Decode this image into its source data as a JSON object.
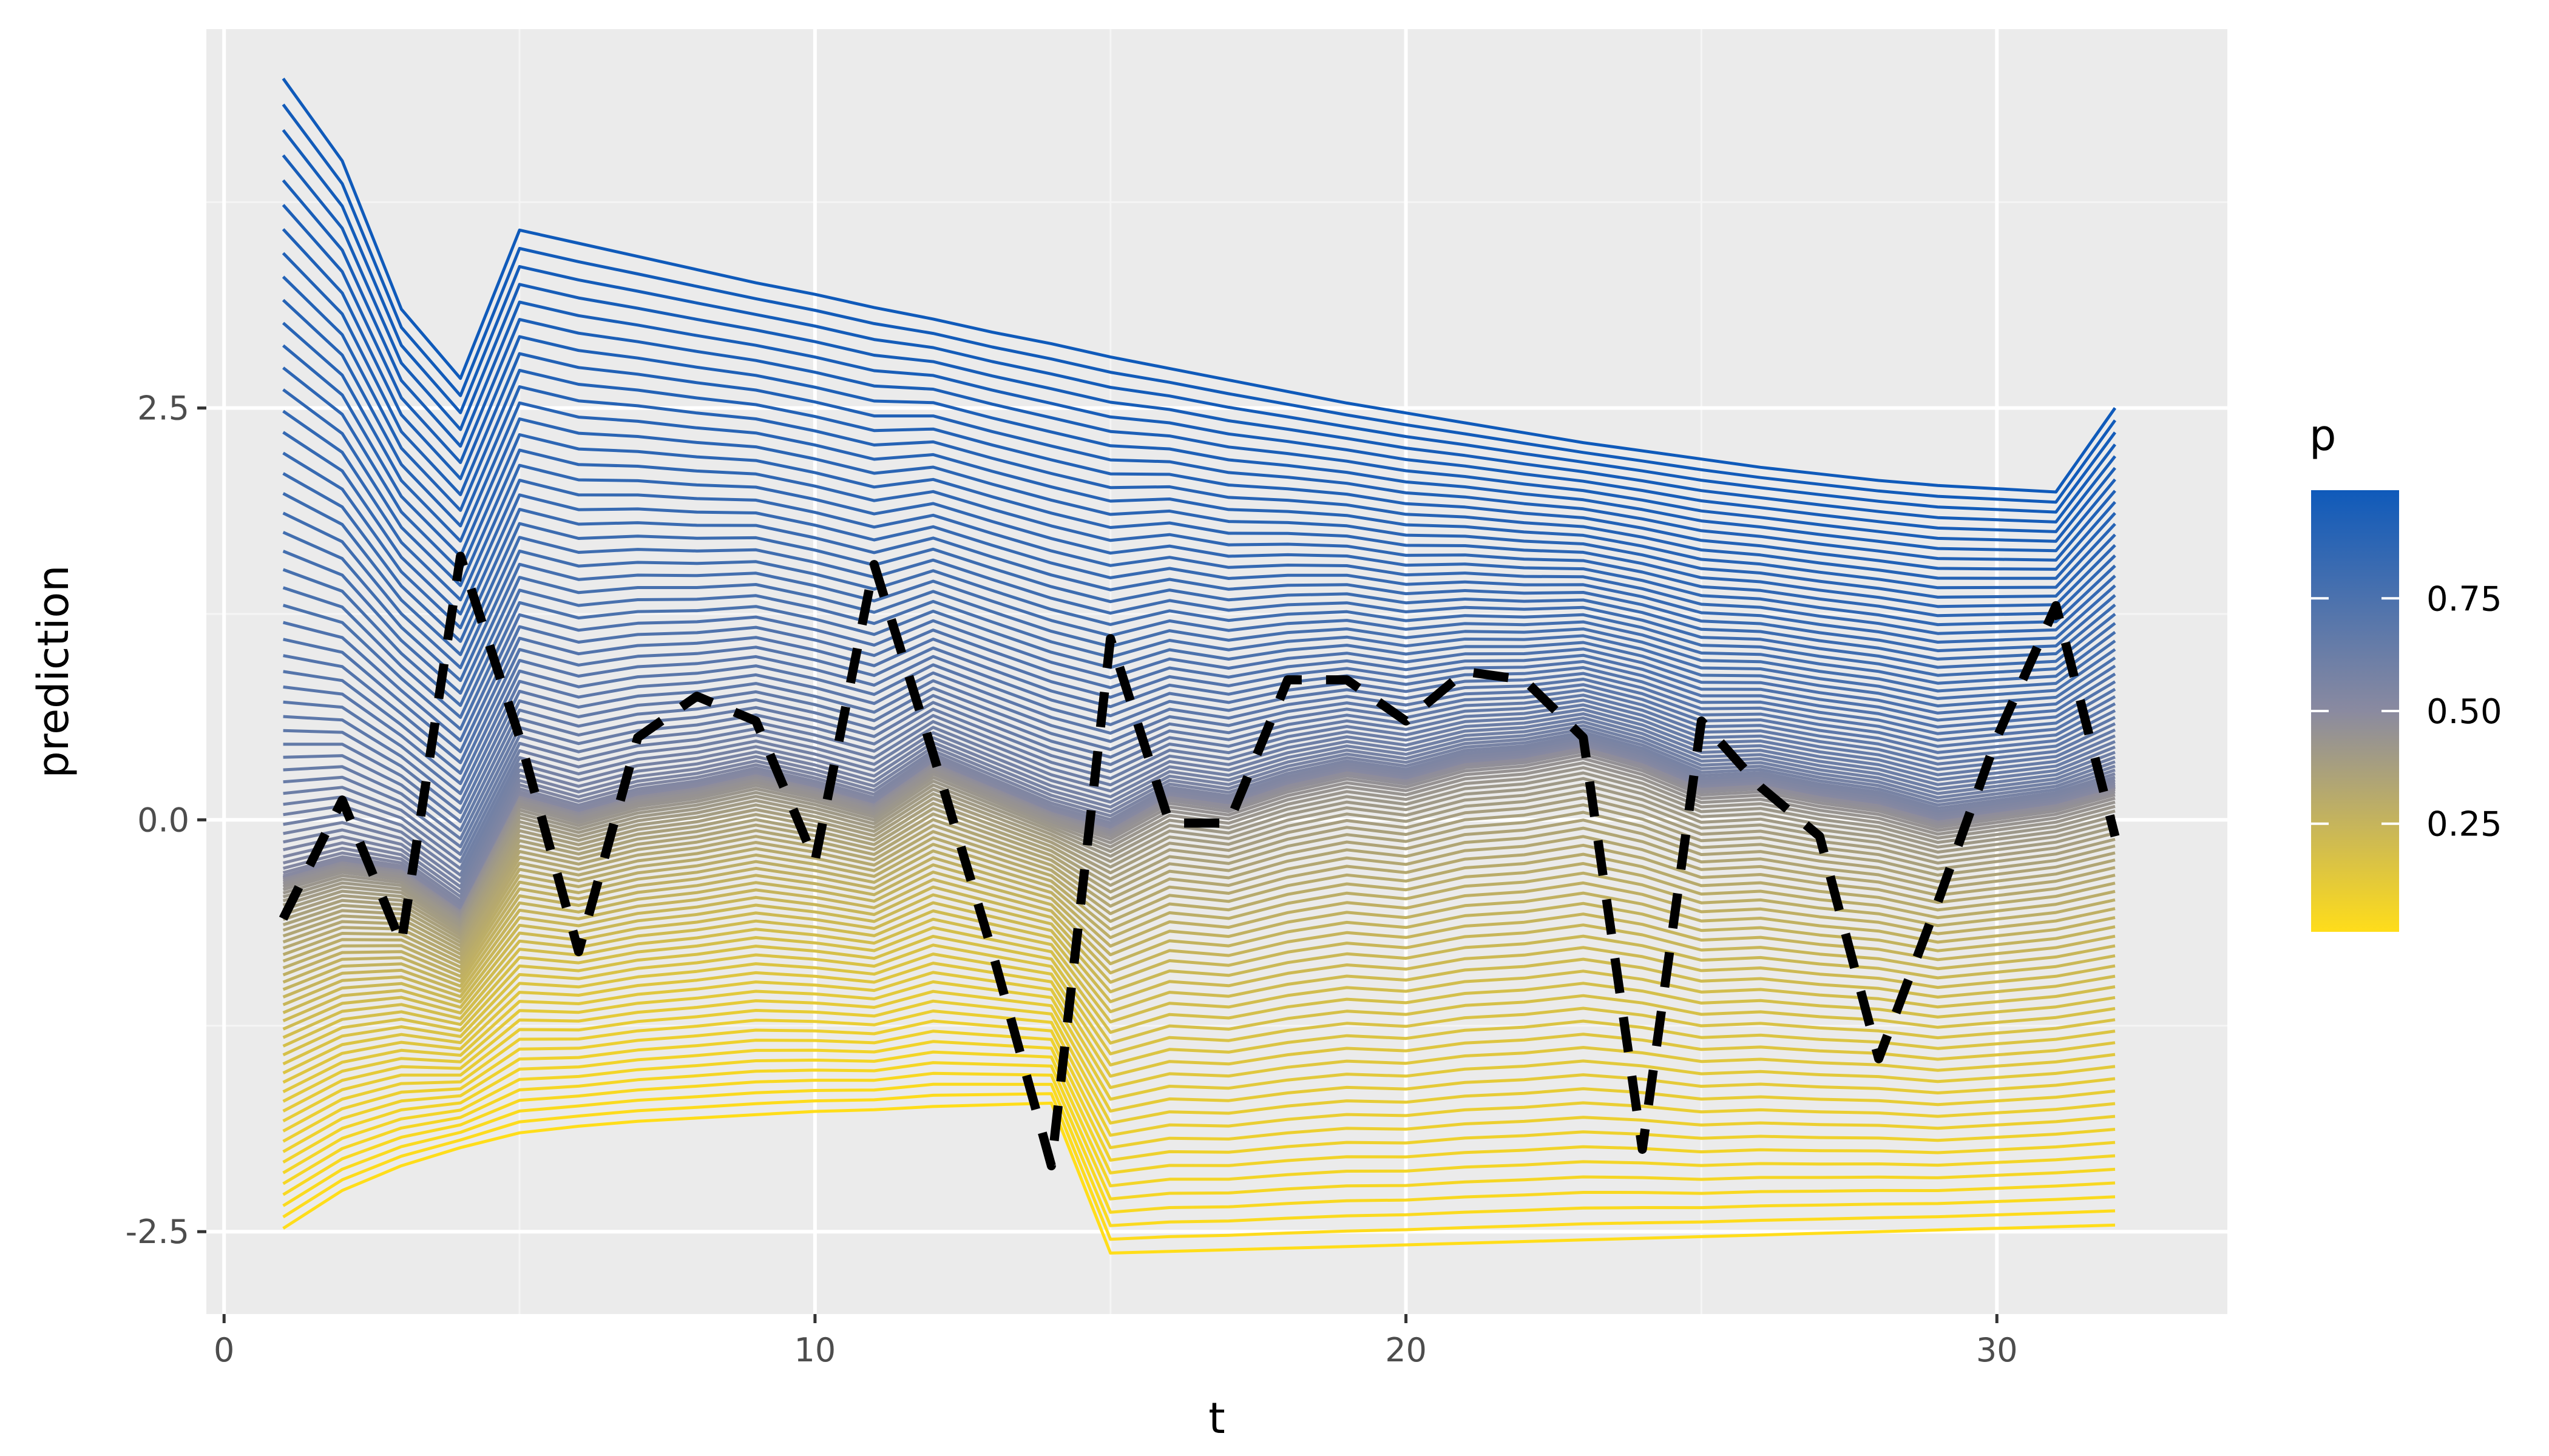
{
  "chart_data": {
    "type": "line",
    "xlabel": "t",
    "ylabel": "prediction",
    "xlim": [
      -0.3,
      33.9
    ],
    "ylim": [
      -3.0,
      4.8
    ],
    "x_ticks": [
      0,
      10,
      20,
      30
    ],
    "y_ticks": [
      2.5,
      0.0,
      -2.5
    ],
    "x_tick_labels": [
      "0",
      "10",
      "20",
      "30"
    ],
    "y_tick_labels": [
      "2.5",
      "0.0",
      "-2.5"
    ],
    "grid": true,
    "x": [
      1,
      2,
      3,
      4,
      5,
      6,
      7,
      8,
      9,
      10,
      11,
      12,
      13,
      14,
      15,
      16,
      17,
      18,
      19,
      20,
      21,
      22,
      23,
      24,
      25,
      26,
      27,
      28,
      29,
      30,
      31,
      32
    ],
    "quantile_levels": {
      "p_min": 0.01,
      "p_max": 0.99,
      "count": 99
    },
    "series": [
      {
        "p": 0.01,
        "values": [
          -2.48,
          -2.25,
          -2.1,
          -1.99,
          -1.9,
          -1.86,
          -1.83,
          -1.81,
          -1.79,
          -1.77,
          -1.76,
          -1.74,
          -1.73,
          -1.72,
          -2.63,
          -2.62,
          -2.61,
          -2.6,
          -2.59,
          -2.58,
          -2.57,
          -2.56,
          -2.55,
          -2.54,
          -2.53,
          -2.52,
          -2.51,
          -2.5,
          -2.49,
          -2.48,
          -2.47,
          -2.46
        ]
      },
      {
        "p": 0.5,
        "values": [
          -0.35,
          -0.25,
          -0.3,
          -0.55,
          0.15,
          0.05,
          0.15,
          0.2,
          0.28,
          0.2,
          0.1,
          0.35,
          0.2,
          0.05,
          -0.05,
          0.15,
          0.1,
          0.22,
          0.3,
          0.25,
          0.35,
          0.38,
          0.45,
          0.35,
          0.2,
          0.22,
          0.15,
          0.1,
          0.0,
          0.05,
          0.1,
          0.2
        ]
      },
      {
        "p": 0.99,
        "values": [
          4.5,
          4.0,
          3.1,
          2.68,
          3.58,
          3.5,
          3.42,
          3.34,
          3.26,
          3.19,
          3.11,
          3.04,
          2.96,
          2.89,
          2.81,
          2.74,
          2.67,
          2.6,
          2.53,
          2.47,
          2.41,
          2.35,
          2.29,
          2.24,
          2.19,
          2.14,
          2.1,
          2.06,
          2.03,
          2.01,
          1.99,
          2.5
        ]
      }
    ],
    "observed": {
      "line_style": "dashed",
      "color": "#000000",
      "values": [
        -0.6,
        0.12,
        -0.75,
        1.6,
        0.5,
        -0.8,
        0.5,
        0.75,
        0.6,
        -0.25,
        1.55,
        0.4,
        -0.8,
        -2.1,
        1.1,
        -0.02,
        -0.02,
        0.85,
        0.85,
        0.6,
        0.9,
        0.85,
        0.5,
        -2.0,
        0.6,
        0.2,
        -0.1,
        -1.45,
        -0.5,
        0.5,
        1.3,
        -0.1
      ]
    },
    "colorbar": {
      "title": "p",
      "ticks": [
        0.25,
        0.5,
        0.75
      ],
      "tick_labels": [
        "0.25",
        "0.50",
        "0.75"
      ],
      "range": [
        0.01,
        0.99
      ],
      "colors": [
        "#ffdd1a",
        "#8a8aa0",
        "#0f5aba"
      ],
      "placement": "right"
    },
    "colors": {
      "panel_bg": "#ebebeb",
      "grid_major": "#ffffff",
      "grid_minor": "#f5f5f5"
    }
  }
}
